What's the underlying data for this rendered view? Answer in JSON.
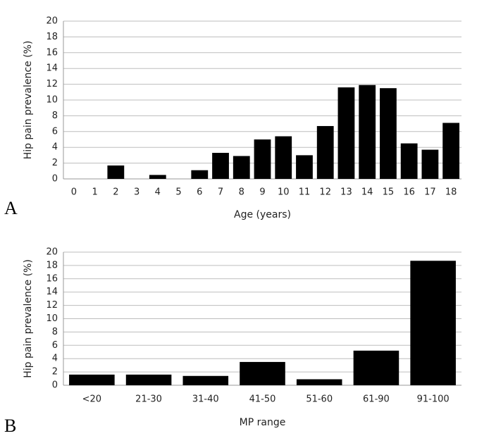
{
  "chart_data": [
    {
      "type": "bar",
      "panel_label": "A",
      "xlabel": "Age (years)",
      "ylabel": "Hip pain prevalence (%)",
      "categories": [
        "0",
        "1",
        "2",
        "3",
        "4",
        "5",
        "6",
        "7",
        "8",
        "9",
        "10",
        "11",
        "12",
        "13",
        "14",
        "15",
        "16",
        "17",
        "18"
      ],
      "values": [
        0,
        0,
        1.7,
        0,
        0.5,
        0,
        1.1,
        3.3,
        2.9,
        5.0,
        5.4,
        3.0,
        6.7,
        11.6,
        11.9,
        11.5,
        4.5,
        3.7,
        7.1
      ],
      "color": "#000000",
      "ylim": [
        0,
        20
      ],
      "yticks": [
        0,
        2,
        4,
        6,
        8,
        10,
        12,
        14,
        16,
        18,
        20
      ],
      "grid": true
    },
    {
      "type": "bar",
      "panel_label": "B",
      "xlabel": "MP range",
      "ylabel": "Hip pain prevalence (%)",
      "categories": [
        "<20",
        "21-30",
        "31-40",
        "41-50",
        "51-60",
        "61-90",
        "91-100"
      ],
      "values": [
        1.6,
        1.6,
        1.4,
        3.5,
        0.9,
        5.2,
        18.7
      ],
      "color": "#000000",
      "ylim": [
        0,
        20
      ],
      "yticks": [
        0,
        2,
        4,
        6,
        8,
        10,
        12,
        14,
        16,
        18,
        20
      ],
      "grid": true
    }
  ]
}
